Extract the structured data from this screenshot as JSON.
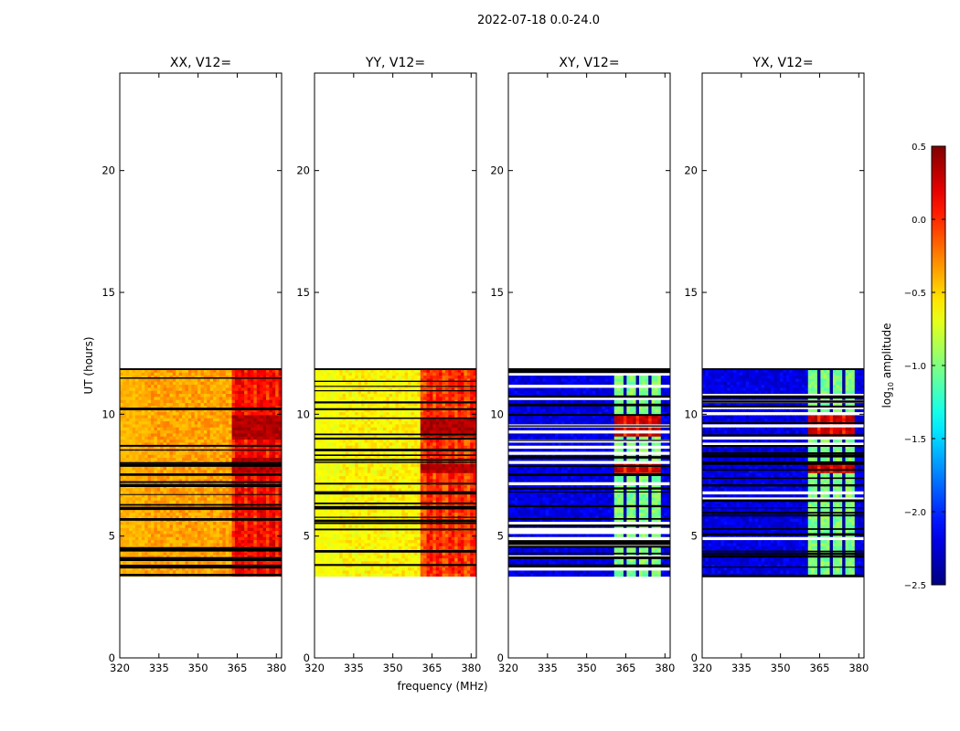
{
  "figure": {
    "suptitle": "2022-07-18 0.0-24.0",
    "xlabel": "frequency (MHz)",
    "ylabel": "UT (hours)"
  },
  "colorbar": {
    "label": "log10 amplitude",
    "label_base": "log",
    "label_sub": "10",
    "label_rest": " amplitude",
    "min": -2.5,
    "max": 0.5,
    "ticks": [
      "0.5",
      "0.0",
      "−0.5",
      "−1.0",
      "−1.5",
      "−2.0",
      "−2.5"
    ],
    "tick_values": [
      0.5,
      0.0,
      -0.5,
      -1.0,
      -1.5,
      -2.0,
      -2.5
    ],
    "colormap": "jet"
  },
  "chart_data": [
    {
      "type": "heatmap",
      "title": "XX, V12=",
      "xlim": [
        320,
        382
      ],
      "ylim": [
        0,
        24
      ],
      "xticks": [
        320,
        335,
        350,
        365,
        380
      ],
      "yticks": [
        0,
        5,
        10,
        15,
        20
      ],
      "data_time_range": [
        3.35,
        11.85
      ],
      "base_level": -0.35,
      "band_freqs_mhz": [
        363,
        382
      ],
      "band_level": 0.15,
      "peak_time_ranges": [
        [
          9.0,
          10.0
        ],
        [
          7.6,
          8.2
        ]
      ],
      "peak_level": 0.45
    },
    {
      "type": "heatmap",
      "title": "YY, V12=",
      "xlim": [
        320,
        382
      ],
      "ylim": [
        0,
        24
      ],
      "xticks": [
        320,
        335,
        350,
        365,
        380
      ],
      "yticks": [
        0,
        5,
        10,
        15,
        20
      ],
      "data_time_range": [
        3.35,
        11.85
      ],
      "base_level": -0.6,
      "band_freqs_mhz": [
        361,
        382
      ],
      "band_level": 0.05,
      "peak_time_ranges": [
        [
          9.1,
          9.8
        ],
        [
          7.6,
          8.0
        ]
      ],
      "peak_level": 0.45
    },
    {
      "type": "heatmap",
      "title": "XY, V12=",
      "xlim": [
        320,
        382
      ],
      "ylim": [
        0,
        24
      ],
      "xticks": [
        320,
        335,
        350,
        365,
        380
      ],
      "yticks": [
        0,
        5,
        10,
        15,
        20
      ],
      "data_time_range": [
        3.35,
        11.85
      ],
      "base_level": -2.2,
      "band_freqs_mhz": [
        360,
        379
      ],
      "band_level": -1.0,
      "peak_time_ranges": [
        [
          9.1,
          10.0
        ],
        [
          7.6,
          8.0
        ]
      ],
      "peak_level": 0.4
    },
    {
      "type": "heatmap",
      "title": "YX, V12=",
      "xlim": [
        320,
        382
      ],
      "ylim": [
        0,
        24
      ],
      "xticks": [
        320,
        335,
        350,
        365,
        380
      ],
      "yticks": [
        0,
        5,
        10,
        15,
        20
      ],
      "data_time_range": [
        3.35,
        11.85
      ],
      "base_level": -2.2,
      "band_freqs_mhz": [
        360,
        379
      ],
      "band_level": -1.0,
      "peak_time_ranges": [
        [
          9.1,
          10.0
        ],
        [
          7.6,
          8.0
        ]
      ],
      "peak_level": 0.4
    }
  ]
}
